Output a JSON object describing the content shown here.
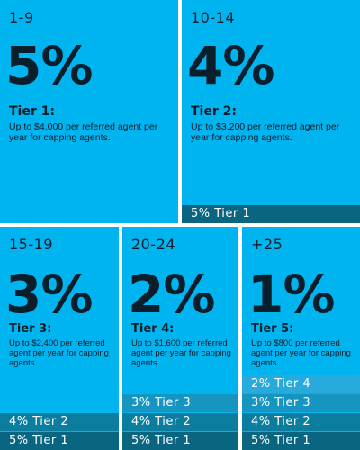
{
  "tiers": [
    {
      "range": "1-9",
      "percent": "5%",
      "title": "Tier 1:",
      "description": "Up to $4,000 per referred agent per year for capping agents.",
      "bands": []
    },
    {
      "range": "10-14",
      "percent": "4%",
      "title": "Tier 2:",
      "description": "Up to $3,200 per referred agent per year for capping agents.",
      "bands": [
        "5% Tier 1"
      ]
    },
    {
      "range": "15-19",
      "percent": "3%",
      "title": "Tier 3:",
      "description": "Up to $2,400 per referred agent per year for capping agents.",
      "bands": [
        "4% Tier 2",
        "5% Tier 1"
      ]
    },
    {
      "range": "20-24",
      "percent": "2%",
      "title": "Tier 4:",
      "description": "Up to $1,600 per referred agent per year for capping agents.",
      "bands": [
        "3% Tier 3",
        "4% Tier 2",
        "5% Tier 1"
      ]
    },
    {
      "range": "+25",
      "percent": "1%",
      "title": "Tier 5:",
      "description": "Up to $800 per referred agent per year for capping agents.",
      "bands": [
        "2% Tier 4",
        "3% Tier 3",
        "4% Tier 2",
        "5% Tier 1"
      ]
    }
  ],
  "colors": {
    "card": "#00b4f0",
    "text": "#0a1e2c",
    "band_tier1": "#0a6680",
    "band_tier2": "#0b7ea0",
    "band_tier3": "#1695c0",
    "band_tier4": "#28aadc"
  }
}
